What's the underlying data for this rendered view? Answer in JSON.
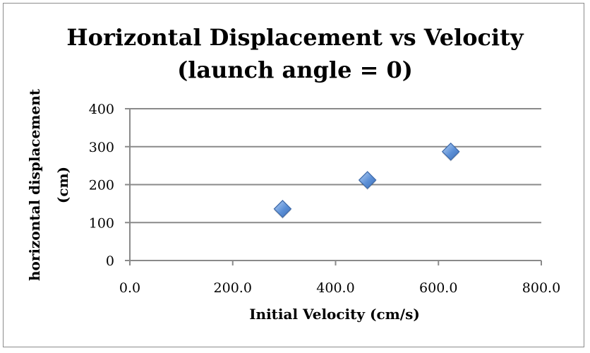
{
  "chart_data": {
    "type": "scatter",
    "title_lines": [
      "Horizontal Displacement vs Velocity",
      "(launch angle = 0)"
    ],
    "xlabel": "Initial Velocity (cm/s)",
    "ylabel_lines": [
      "horizontal displacement",
      "(cm)"
    ],
    "xlim": [
      0,
      800
    ],
    "ylim": [
      0,
      400
    ],
    "xticks": [
      "0.0",
      "200.0",
      "400.0",
      "600.0",
      "800.0"
    ],
    "yticks": [
      "0",
      "100",
      "200",
      "300",
      "400"
    ],
    "grid": "horizontal",
    "legend": "none",
    "marker_color": "#5b8fd6",
    "series": [
      {
        "x": [
          297,
          462,
          624
        ],
        "y": [
          136,
          212,
          287
        ]
      }
    ]
  }
}
